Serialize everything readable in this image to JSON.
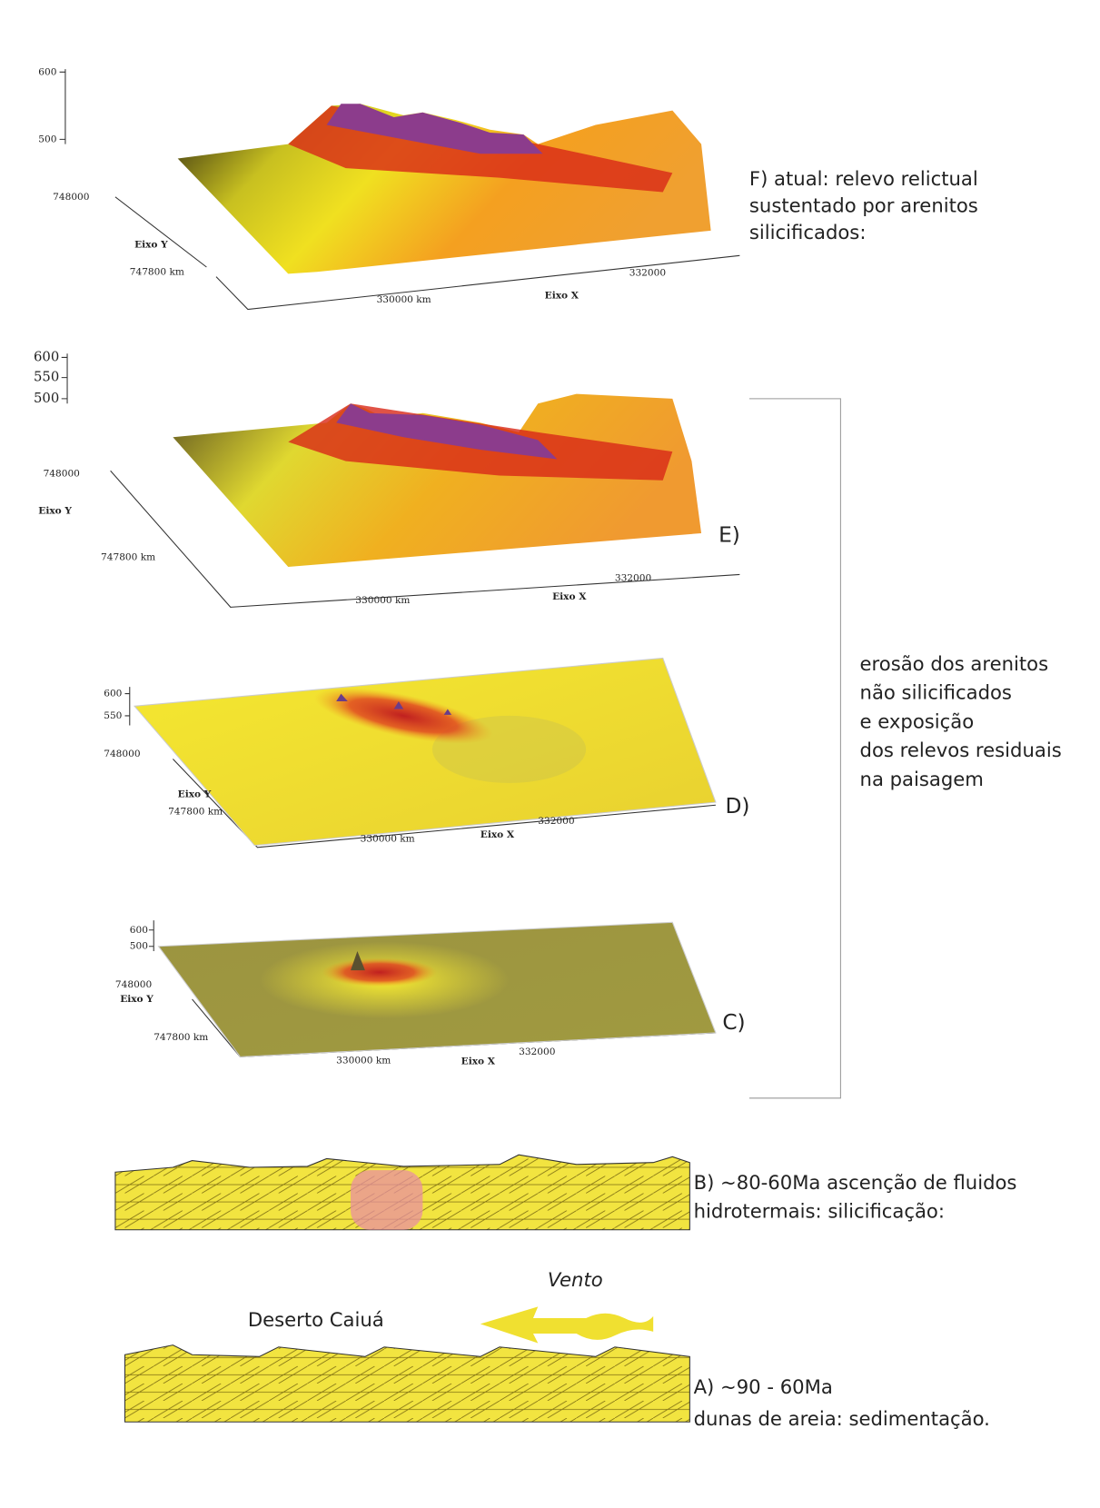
{
  "panels": [
    {
      "caption": [
        "F) atual: relevo relictual",
        "sustentado por arenitos",
        "silicificados:"
      ],
      "z_ticks": [
        "600",
        "500"
      ],
      "y_ticks": [
        "748000",
        "747800 km"
      ],
      "y_axis_label": "Eixo Y",
      "x_ticks": [
        "330000 km",
        "332000"
      ],
      "x_axis_label": "Eixo X"
    },
    {
      "label": "E)",
      "z_ticks": [
        "600",
        "550",
        "500"
      ],
      "y_ticks": [
        "748000",
        "747800 km"
      ],
      "y_axis_label": "Eixo Y",
      "x_ticks": [
        "330000 km",
        "332000"
      ],
      "x_axis_label": "Eixo X"
    },
    {
      "label": "D)",
      "z_ticks": [
        "600",
        "550"
      ],
      "y_ticks": [
        "748000",
        "747800 km"
      ],
      "y_axis_label": "Eixo Y",
      "x_ticks": [
        "330000 km",
        "332000"
      ],
      "x_axis_label": "Eixo X"
    },
    {
      "label": "C)",
      "z_ticks": [
        "600",
        "500"
      ],
      "y_ticks": [
        "748000",
        "747800 km"
      ],
      "y_axis_label": "Eixo Y",
      "x_ticks": [
        "330000 km",
        "332000"
      ],
      "x_axis_label": "Eixo X"
    }
  ],
  "bracket_caption": [
    "erosão dos arenitos",
    "não silicificados",
    "e exposição",
    "dos relevos residuais",
    "na paisagem"
  ],
  "stage_b": {
    "caption": [
      "B) ~80-60Ma ascenção de fluidos",
      "hidrotermais: silicificação:"
    ]
  },
  "stage_a": {
    "wind_label": "Vento",
    "place_label": "Deserto Caiuá",
    "caption": [
      "A) ~90 - 60Ma",
      "dunas de areia: sedimentação."
    ]
  }
}
